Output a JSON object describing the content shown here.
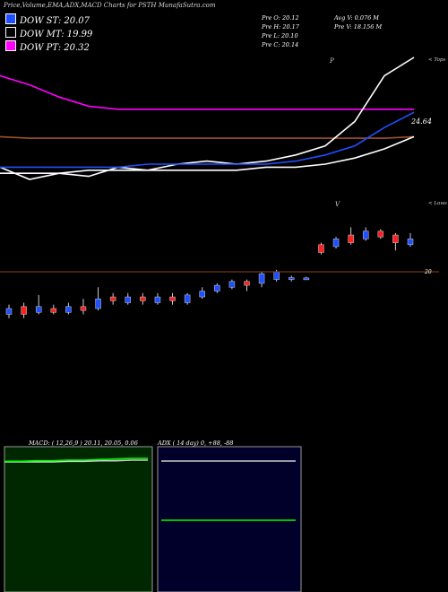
{
  "header": {
    "title": "Price,Volume,EMA,ADX,MACD Charts for PSTH MunafaSutra.com"
  },
  "legend": [
    {
      "label": "DOW ST: 20.07",
      "color": "#1f4fff"
    },
    {
      "label": "DOW MT: 19.99",
      "color": "#000000"
    },
    {
      "label": "DOW PT: 20.32",
      "color": "#ff00ff"
    }
  ],
  "stats": {
    "prev_open": "Pre O: 20.12",
    "prev_high": "Pre H: 20.17",
    "prev_low": "Pre L: 20.10",
    "prev_close": "Pre C: 20.14",
    "avg_volume": "Avg V: 0.076 M",
    "prev_volume": "Pre V: 18.156 M"
  },
  "labels": {
    "ema_value": "24.64",
    "price_ref": "20",
    "tops": "< Tops",
    "lows": "< Lows",
    "tops_marker": "P",
    "lows_marker": "V"
  },
  "macd_panel": {
    "title": "MACD: ( 12,26,9 ) 20.11, 20.05, 0.06",
    "bg": "#002800",
    "border": "#9a9a9a"
  },
  "adx_panel": {
    "title": "ADX ( 14 day) 0, +88, -88",
    "bg": "#00002a",
    "border": "#9a9a9a"
  },
  "chart_data": [
    {
      "type": "line",
      "title": "",
      "series": [
        {
          "name": "DOW PT",
          "color": "#ff00ff",
          "values": [
            23.9,
            23.6,
            23.2,
            22.9,
            22.8,
            22.8,
            22.8,
            22.8,
            22.8,
            22.8,
            22.8,
            22.8,
            22.8,
            22.8,
            22.8
          ]
        },
        {
          "color": "#a0522d",
          "values": [
            21.9,
            21.85,
            21.85,
            21.85,
            21.85,
            21.85,
            21.85,
            21.85,
            21.85,
            21.85,
            21.85,
            21.85,
            21.85,
            21.85,
            21.9
          ]
        },
        {
          "color": "#ffffff",
          "values": [
            20.9,
            20.5,
            20.7,
            20.6,
            20.9,
            20.8,
            21.0,
            21.1,
            21.0,
            21.1,
            21.3,
            21.6,
            22.4,
            23.9,
            24.5
          ]
        },
        {
          "color": "#1f4fff",
          "values": [
            20.9,
            20.9,
            20.9,
            20.9,
            20.9,
            21.0,
            21.0,
            21.0,
            21.0,
            21.0,
            21.1,
            21.3,
            21.6,
            22.2,
            22.7
          ]
        },
        {
          "color": "#ffffff",
          "values": [
            20.7,
            20.7,
            20.7,
            20.8,
            20.8,
            20.8,
            20.8,
            20.8,
            20.8,
            20.9,
            20.9,
            21.0,
            21.2,
            21.5,
            21.9
          ]
        }
      ]
    },
    {
      "type": "bar",
      "title": "",
      "candles": [
        {
          "open": 19.2,
          "close": 19.35,
          "high": 19.45,
          "low": 19.1,
          "color": "#1f4fff"
        },
        {
          "open": 19.4,
          "close": 19.2,
          "high": 19.5,
          "low": 19.1,
          "color": "#ff2020"
        },
        {
          "open": 19.25,
          "close": 19.4,
          "high": 19.7,
          "low": 19.2,
          "color": "#1f4fff"
        },
        {
          "open": 19.35,
          "close": 19.25,
          "high": 19.45,
          "low": 19.2,
          "color": "#ff2020"
        },
        {
          "open": 19.25,
          "close": 19.4,
          "high": 19.5,
          "low": 19.2,
          "color": "#1f4fff"
        },
        {
          "open": 19.4,
          "close": 19.3,
          "high": 19.6,
          "low": 19.2,
          "color": "#ff2020"
        },
        {
          "open": 19.35,
          "close": 19.6,
          "high": 19.9,
          "low": 19.3,
          "color": "#1f4fff"
        },
        {
          "open": 19.65,
          "close": 19.55,
          "high": 19.75,
          "low": 19.45,
          "color": "#ff2020"
        },
        {
          "open": 19.5,
          "close": 19.65,
          "high": 19.75,
          "low": 19.45,
          "color": "#1f4fff"
        },
        {
          "open": 19.65,
          "close": 19.55,
          "high": 19.75,
          "low": 19.45,
          "color": "#ff2020"
        },
        {
          "open": 19.5,
          "close": 19.65,
          "high": 19.75,
          "low": 19.45,
          "color": "#1f4fff"
        },
        {
          "open": 19.65,
          "close": 19.55,
          "high": 19.75,
          "low": 19.45,
          "color": "#ff2020"
        },
        {
          "open": 19.5,
          "close": 19.7,
          "high": 19.75,
          "low": 19.45,
          "color": "#1f4fff"
        },
        {
          "open": 19.65,
          "close": 19.8,
          "high": 19.9,
          "low": 19.6,
          "color": "#1f4fff"
        },
        {
          "open": 19.8,
          "close": 19.95,
          "high": 20.0,
          "low": 19.75,
          "color": "#1f4fff"
        },
        {
          "open": 19.9,
          "close": 20.05,
          "high": 20.1,
          "low": 19.85,
          "color": "#1f4fff"
        },
        {
          "open": 20.05,
          "close": 19.95,
          "high": 20.1,
          "low": 19.8,
          "color": "#ff2020"
        },
        {
          "open": 20.0,
          "close": 20.25,
          "high": 20.3,
          "low": 19.9,
          "color": "#1f4fff"
        },
        {
          "open": 20.1,
          "close": 20.3,
          "high": 20.35,
          "low": 20.05,
          "color": "#1f4fff"
        },
        {
          "open": 20.1,
          "close": 20.15,
          "high": 20.2,
          "low": 20.05,
          "color": "#1f4fff"
        },
        {
          "open": 20.12,
          "close": 20.14,
          "high": 20.17,
          "low": 20.1,
          "color": "#1f4fff"
        },
        {
          "open": 20.8,
          "close": 21.0,
          "high": 21.05,
          "low": 20.75,
          "color": "#ff2020"
        },
        {
          "open": 20.95,
          "close": 21.15,
          "high": 21.2,
          "low": 20.9,
          "color": "#1f4fff"
        },
        {
          "open": 21.25,
          "close": 21.05,
          "high": 21.45,
          "low": 21.0,
          "color": "#ff2020"
        },
        {
          "open": 21.15,
          "close": 21.35,
          "high": 21.45,
          "low": 21.1,
          "color": "#1f4fff"
        },
        {
          "open": 21.35,
          "close": 21.2,
          "high": 21.4,
          "low": 21.15,
          "color": "#ff2020"
        },
        {
          "open": 21.25,
          "close": 21.05,
          "high": 21.3,
          "low": 20.85,
          "color": "#ff2020"
        },
        {
          "open": 21.0,
          "close": 21.15,
          "high": 21.3,
          "low": 20.95,
          "color": "#1f4fff"
        }
      ]
    },
    {
      "type": "line",
      "title": "MACD: ( 12,26,9 ) 20.11, 20.05, 0.06",
      "series": [
        {
          "color": "#cccccc",
          "values": [
            20.05,
            20.05,
            20.05,
            20.05,
            20.06,
            20.06,
            20.07,
            20.07,
            20.08,
            20.08
          ]
        },
        {
          "color": "#00ff00",
          "values": [
            20.06,
            20.06,
            20.07,
            20.07,
            20.08,
            20.08,
            20.09,
            20.1,
            20.11,
            20.11
          ]
        }
      ]
    },
    {
      "type": "line",
      "title": "ADX ( 14 day) 0, +88, -88",
      "series": [
        {
          "color": "#cccccc",
          "values": [
            88,
            88,
            88,
            88,
            88,
            88,
            88,
            88,
            88,
            88
          ]
        },
        {
          "color": "#00ff00",
          "values": [
            0,
            0,
            0,
            0,
            0,
            0,
            0,
            0,
            0,
            0
          ]
        }
      ]
    }
  ]
}
